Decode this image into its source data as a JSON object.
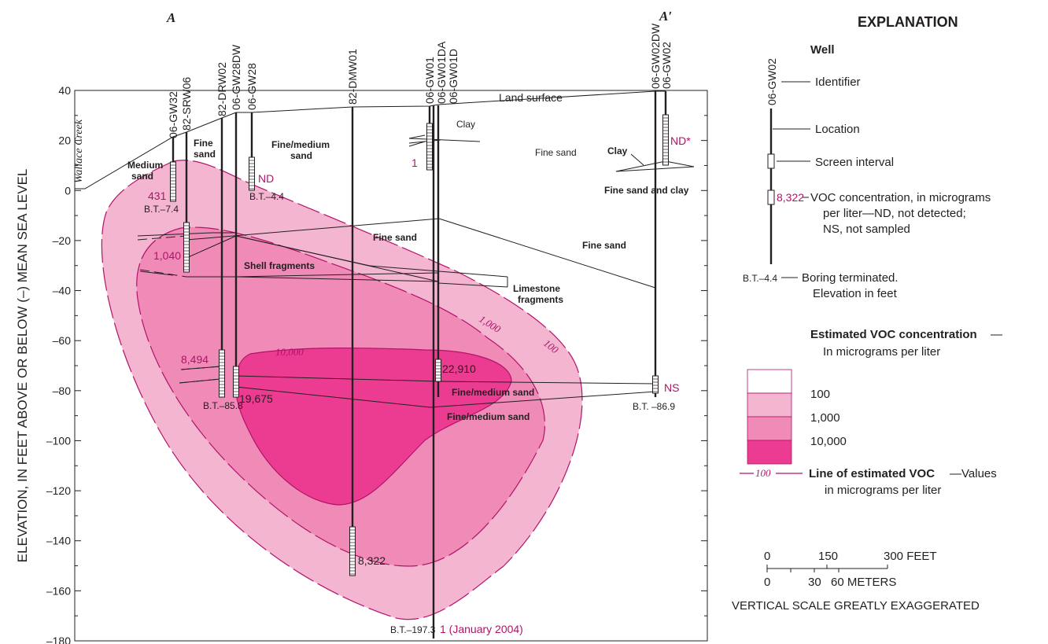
{
  "section": {
    "start": "A",
    "end": "A′"
  },
  "axis": {
    "ylabel": "ELEVATION, IN FEET ABOVE OR BELOW (–) MEAN SEA LEVEL",
    "ylim": [
      -180,
      40
    ],
    "ticks": [
      "40",
      "20",
      "0",
      "–20",
      "–40",
      "–60",
      "–80",
      "–100",
      "–120",
      "–140",
      "–160",
      "–180"
    ]
  },
  "creek": "Wallace Creek",
  "wells": [
    {
      "id": "06-GW32",
      "concentration": "431",
      "bt": "B.T.–7.4"
    },
    {
      "id": "82-SRW06",
      "concentration": "1,040",
      "bt": ""
    },
    {
      "id": "82-DRW02",
      "concentration": "8,494",
      "bt": "B.T.–85.8"
    },
    {
      "id": "06-GW28DW",
      "concentration": "19,675",
      "bt": ""
    },
    {
      "id": "06-GW28",
      "concentration": "ND",
      "bt": "B.T.–4.4"
    },
    {
      "id": "82-DMW01",
      "concentration": "8,322",
      "bt": ""
    },
    {
      "id": "06-GW01",
      "concentration": "1",
      "bt": ""
    },
    {
      "id": "06-GW01DA",
      "concentration": "22,910",
      "bt": ""
    },
    {
      "id": "06-GW01D",
      "concentration": "1 (January 2004)",
      "bt": "B.T.–197.3"
    },
    {
      "id": "06-GW02DW",
      "concentration": "NS",
      "bt": "B.T. –86.9"
    },
    {
      "id": "06-GW02",
      "concentration": "ND*",
      "bt": ""
    }
  ],
  "lithology": {
    "land_surface": "Land surface",
    "clay_1": "Clay",
    "clay_2": "Clay",
    "fine_sand_upper": "Fine sand",
    "fine_sand_2": "Fine sand",
    "fine_sand_3": "Fine sand",
    "fine_sand_left": "Fine",
    "fine_sand_left2": "sand",
    "medium_sand_1": "Medium",
    "medium_sand_2": "sand",
    "fine_medium_1": "Fine/medium",
    "fine_medium_2": "sand",
    "fine_sand_and_clay": "Fine sand and clay",
    "shell_fragments": "Shell fragments",
    "limestone_1": "Limestone",
    "limestone_2": "fragments",
    "fine_medium_sand_1": "Fine/medium sand",
    "fine_medium_sand_2": "Fine/medium sand"
  },
  "isolines": {
    "v10000": "10,000",
    "v1000": "1,000",
    "v100": "100"
  },
  "legend": {
    "title": "EXPLANATION",
    "well_heading": "Well",
    "example_well": "06-GW02",
    "identifier": "Identifier",
    "location": "Location",
    "screen_interval": "Screen interval",
    "example_conc": "8,322",
    "voc_line1": "VOC concentration, in micrograms",
    "voc_line2": "per liter—ND, not detected;",
    "voc_line3": "NS, not sampled",
    "bt_example": "B.T.–4.4",
    "bt_line1": "Boring terminated.",
    "bt_line2": "Elevation in feet",
    "est_heading": "Estimated VOC concentration",
    "est_dash": "—",
    "est_sub": "In micrograms per liter",
    "classes": [
      {
        "label": "100",
        "color": "#ffffff"
      },
      {
        "label": "1,000",
        "color": "#f4b5d1"
      },
      {
        "label": "10,000",
        "color": "#f08bb8"
      },
      {
        "label": "",
        "color": "#ec3c91"
      }
    ],
    "line_value": "100",
    "line_bold": "Line of estimated VOC",
    "line_rest": "—Values",
    "line_sub": "in micrograms per liter"
  },
  "scale": {
    "feet_labels": [
      "0",
      "150",
      "300 FEET"
    ],
    "meter_labels": [
      "0",
      "30",
      "60 METERS"
    ],
    "note": "VERTICAL SCALE GREATLY EXAGGERATED"
  },
  "colors": {
    "c100": "#f4b5d1",
    "c1000": "#f08bb8",
    "c10000": "#ec3c91",
    "accent": "#b3126a",
    "ink": "#231f20"
  }
}
